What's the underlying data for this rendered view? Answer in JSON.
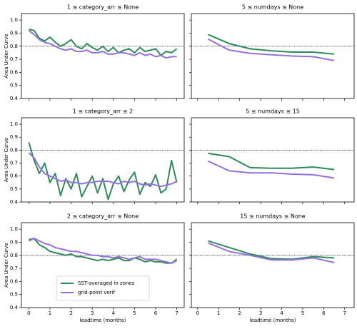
{
  "chart_data": [
    {
      "type": "line",
      "title": "1 ≤ category_arr ≤ None",
      "ylabel": "Area Under Curve",
      "x": [
        0,
        0.25,
        0.5,
        0.75,
        1,
        1.25,
        1.5,
        1.75,
        2,
        2.25,
        2.5,
        2.75,
        3,
        3.25,
        3.5,
        3.75,
        4,
        4.25,
        4.5,
        4.75,
        5,
        5.25,
        5.5,
        5.75,
        6,
        6.25,
        6.5,
        6.75,
        7
      ],
      "series": [
        {
          "color": "#2e8b57",
          "values": [
            0.93,
            0.92,
            0.86,
            0.84,
            0.87,
            0.83,
            0.8,
            0.82,
            0.85,
            0.8,
            0.78,
            0.82,
            0.79,
            0.77,
            0.8,
            0.76,
            0.79,
            0.75,
            0.77,
            0.78,
            0.75,
            0.79,
            0.76,
            0.77,
            0.78,
            0.73,
            0.76,
            0.75,
            0.78
          ]
        },
        {
          "color": "#9370db",
          "values": [
            0.92,
            0.89,
            0.85,
            0.83,
            0.82,
            0.8,
            0.78,
            0.77,
            0.78,
            0.76,
            0.76,
            0.77,
            0.75,
            0.75,
            0.76,
            0.74,
            0.74,
            0.75,
            0.75,
            0.74,
            0.73,
            0.75,
            0.73,
            0.74,
            0.72,
            0.73,
            0.71,
            0.72,
            0.72
          ]
        }
      ],
      "xlim": [
        -0.35,
        7.35
      ],
      "ylim": [
        0.4,
        1.05
      ],
      "xticks": [
        0,
        1,
        2,
        3,
        4,
        5,
        6,
        7
      ],
      "yticks": [
        0.4,
        0.5,
        0.6,
        0.7,
        0.8,
        0.9,
        {
          "value": 1,
          "label": "1.0"
        }
      ],
      "hline": 0.8
    },
    {
      "type": "line",
      "title": "5 ≤ numdays ≤ None",
      "x": [
        0.5,
        1.5,
        2.5,
        3.5,
        4.5,
        5.5,
        6.5
      ],
      "series": [
        {
          "color": "#2e8b57",
          "values": [
            0.89,
            0.82,
            0.78,
            0.765,
            0.755,
            0.755,
            0.74
          ]
        },
        {
          "color": "#9370db",
          "values": [
            0.855,
            0.77,
            0.745,
            0.735,
            0.725,
            0.72,
            0.69
          ]
        }
      ],
      "xlim": [
        -0.3,
        7.45
      ],
      "ylim": [
        0.4,
        1.05
      ],
      "xticks": [
        0,
        1,
        2,
        3,
        4,
        5,
        6,
        7
      ],
      "yticks": [
        0.4,
        0.5,
        0.6,
        0.7,
        0.8,
        0.9,
        1
      ],
      "hline": 0.8
    },
    {
      "type": "line",
      "title": "1 ≤ category_arr ≤ 2",
      "ylabel": "Area Under Curve",
      "x": [
        0,
        0.25,
        0.5,
        0.75,
        1,
        1.25,
        1.5,
        1.75,
        2,
        2.25,
        2.5,
        2.75,
        3,
        3.25,
        3.5,
        3.75,
        4,
        4.25,
        4.5,
        4.75,
        5,
        5.25,
        5.5,
        5.75,
        6,
        6.25,
        6.5,
        6.75,
        7
      ],
      "series": [
        {
          "color": "#2e8b57",
          "values": [
            0.86,
            0.72,
            0.62,
            0.7,
            0.55,
            0.62,
            0.45,
            0.58,
            0.5,
            0.62,
            0.44,
            0.52,
            0.6,
            0.47,
            0.58,
            0.42,
            0.54,
            0.6,
            0.48,
            0.57,
            0.63,
            0.46,
            0.55,
            0.52,
            0.61,
            0.47,
            0.5,
            0.72,
            0.55
          ]
        },
        {
          "color": "#9370db",
          "values": [
            0.78,
            0.74,
            0.67,
            0.62,
            0.6,
            0.58,
            0.56,
            0.57,
            0.55,
            0.55,
            0.54,
            0.55,
            0.55,
            0.56,
            0.56,
            0.56,
            0.55,
            0.54,
            0.56,
            0.55,
            0.56,
            0.54,
            0.53,
            0.54,
            0.53,
            0.52,
            0.53,
            0.54,
            0.56
          ]
        }
      ],
      "xlim": [
        -0.35,
        7.35
      ],
      "ylim": [
        0.4,
        1.05
      ],
      "xticks": [
        0,
        1,
        2,
        3,
        4,
        5,
        6,
        7
      ],
      "yticks": [
        0.4,
        0.5,
        0.6,
        0.7,
        0.8,
        0.9,
        {
          "value": 1,
          "label": "1.0"
        }
      ],
      "hline": 0.8
    },
    {
      "type": "line",
      "title": "5 ≤ numdays ≤ 15",
      "x": [
        0.5,
        1.5,
        2.5,
        3.5,
        4.5,
        5.5,
        6.5
      ],
      "series": [
        {
          "color": "#2e8b57",
          "values": [
            0.775,
            0.75,
            0.665,
            0.66,
            0.66,
            0.67,
            0.65
          ]
        },
        {
          "color": "#9370db",
          "values": [
            0.715,
            0.64,
            0.625,
            0.625,
            0.615,
            0.61,
            0.585
          ]
        }
      ],
      "xlim": [
        -0.3,
        7.45
      ],
      "ylim": [
        0.4,
        1.05
      ],
      "xticks": [
        0,
        1,
        2,
        3,
        4,
        5,
        6,
        7
      ],
      "yticks": [
        0.4,
        0.5,
        0.6,
        0.7,
        0.8,
        0.9,
        1
      ],
      "hline": 0.8
    },
    {
      "type": "line",
      "title": "2 ≤ category_arr ≤ None",
      "ylabel": "Area Under Curve",
      "xlabel": "leadtime (months)",
      "x": [
        0,
        0.25,
        0.5,
        0.75,
        1,
        1.25,
        1.5,
        1.75,
        2,
        2.25,
        2.5,
        2.75,
        3,
        3.25,
        3.5,
        3.75,
        4,
        4.25,
        4.5,
        4.75,
        5,
        5.25,
        5.5,
        5.75,
        6,
        6.25,
        6.5,
        6.75,
        7
      ],
      "series": [
        {
          "name": "SST-averaged in zones",
          "color": "#2e8b57",
          "values": [
            0.92,
            0.93,
            0.88,
            0.86,
            0.83,
            0.82,
            0.81,
            0.8,
            0.81,
            0.79,
            0.79,
            0.78,
            0.77,
            0.76,
            0.77,
            0.76,
            0.77,
            0.78,
            0.76,
            0.76,
            0.78,
            0.77,
            0.75,
            0.76,
            0.75,
            0.75,
            0.74,
            0.74,
            0.77
          ]
        },
        {
          "name": "grid-point verif",
          "color": "#9370db",
          "values": [
            0.91,
            0.93,
            0.91,
            0.89,
            0.88,
            0.86,
            0.85,
            0.84,
            0.83,
            0.83,
            0.82,
            0.81,
            0.8,
            0.8,
            0.79,
            0.79,
            0.78,
            0.79,
            0.78,
            0.77,
            0.78,
            0.79,
            0.77,
            0.77,
            0.77,
            0.76,
            0.75,
            0.74,
            0.76
          ]
        }
      ],
      "xlim": [
        -0.35,
        7.35
      ],
      "ylim": [
        0.4,
        1.05
      ],
      "xticks": [
        0,
        1,
        2,
        3,
        4,
        5,
        6,
        7
      ],
      "yticks": [
        0.4,
        0.5,
        0.6,
        0.7,
        0.8,
        0.9,
        {
          "value": 1,
          "label": "1.0"
        }
      ],
      "hline": 0.8,
      "legend": "lower center"
    },
    {
      "type": "line",
      "title": "15 ≤ numdays ≤ None",
      "xlabel": "leadtime (months)",
      "x": [
        0.5,
        1.5,
        2.5,
        3.5,
        4.5,
        5.5,
        6.5
      ],
      "series": [
        {
          "color": "#2e8b57",
          "values": [
            0.91,
            0.86,
            0.81,
            0.775,
            0.77,
            0.79,
            0.78
          ]
        },
        {
          "color": "#9370db",
          "values": [
            0.895,
            0.83,
            0.8,
            0.765,
            0.765,
            0.78,
            0.745
          ]
        }
      ],
      "xlim": [
        -0.3,
        7.45
      ],
      "ylim": [
        0.4,
        1.05
      ],
      "xticks": [
        0,
        1,
        2,
        3,
        4,
        5,
        6,
        7
      ],
      "yticks": [
        0.4,
        0.5,
        0.6,
        0.7,
        0.8,
        0.9,
        1
      ],
      "hline": 0.8
    }
  ]
}
